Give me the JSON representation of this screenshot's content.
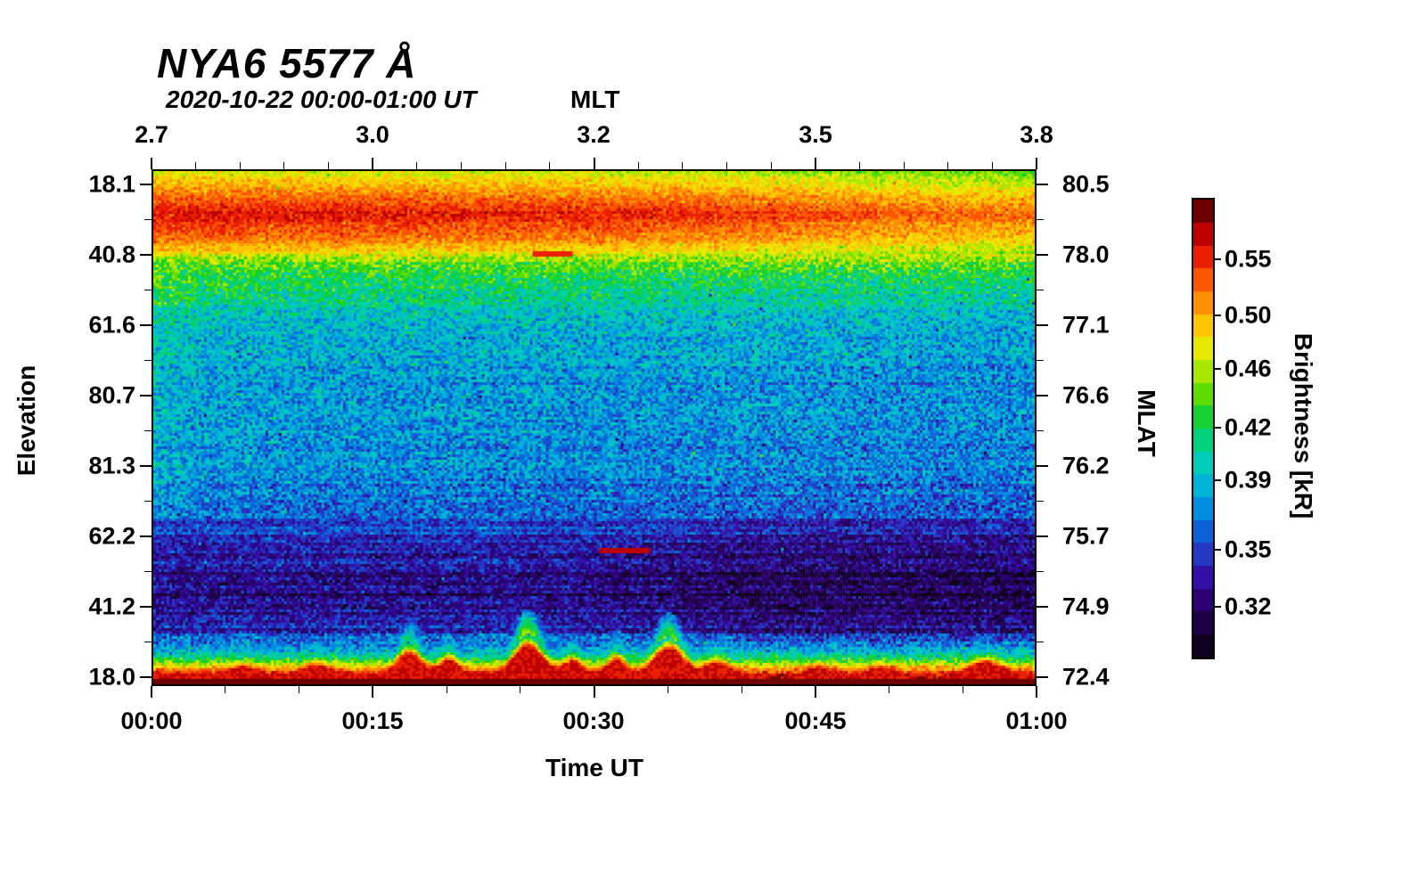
{
  "title": "NYA6 5577 Å",
  "subtitle": "2020-10-22 00:00-01:00 UT",
  "axes": {
    "top": {
      "label": "MLT",
      "ticks": [
        "2.7",
        "3.0",
        "3.2",
        "3.5",
        "3.8"
      ]
    },
    "bottom": {
      "label": "Time UT",
      "ticks": [
        "00:00",
        "00:15",
        "00:30",
        "00:45",
        "01:00"
      ]
    },
    "left": {
      "label": "Elevation",
      "ticks": [
        "18.1",
        "40.8",
        "61.6",
        "80.7",
        "81.3",
        "62.2",
        "41.2",
        "18.0"
      ]
    },
    "right": {
      "label": "MLAT",
      "ticks": [
        "80.5",
        "78.0",
        "77.1",
        "76.6",
        "76.2",
        "75.7",
        "74.9",
        "72.4"
      ]
    }
  },
  "colorbar": {
    "label": "Brightness [kR]",
    "ticks": [
      "0.55",
      "0.50",
      "0.46",
      "0.42",
      "0.39",
      "0.35",
      "0.32"
    ]
  },
  "chart_data": {
    "type": "heatmap",
    "title": "NYA6 5577 Å",
    "subtitle": "2020-10-22 00:00-01:00 UT",
    "x": {
      "label": "Time UT",
      "ticks": [
        "00:00",
        "00:15",
        "00:30",
        "00:45",
        "01:00"
      ]
    },
    "x_top": {
      "label": "MLT",
      "ticks": [
        2.7,
        3.0,
        3.2,
        3.5,
        3.8
      ]
    },
    "y_left": {
      "label": "Elevation",
      "ticks": [
        18.1,
        40.8,
        61.6,
        80.7,
        81.3,
        62.2,
        41.2,
        18.0
      ]
    },
    "y_right": {
      "label": "MLAT",
      "ticks": [
        80.5,
        78.0,
        77.1,
        76.6,
        76.2,
        75.7,
        74.9,
        72.4
      ]
    },
    "value": {
      "label": "Brightness [kR]",
      "ticks": [
        0.55,
        0.5,
        0.46,
        0.42,
        0.39,
        0.35,
        0.32
      ],
      "vmin": 0.295,
      "vmax": 0.605,
      "scale": "log"
    },
    "colormap": [
      [
        0.0,
        "#2e0000"
      ],
      [
        0.03,
        "#7a0000"
      ],
      [
        0.08,
        "#c40000"
      ],
      [
        0.13,
        "#ee2200"
      ],
      [
        0.19,
        "#ff6600"
      ],
      [
        0.25,
        "#ffaa00"
      ],
      [
        0.3,
        "#ffe000"
      ],
      [
        0.34,
        "#d8ee00"
      ],
      [
        0.39,
        "#96e400"
      ],
      [
        0.44,
        "#44d800"
      ],
      [
        0.49,
        "#00cc44"
      ],
      [
        0.54,
        "#00d494"
      ],
      [
        0.59,
        "#00ccc8"
      ],
      [
        0.64,
        "#00aadd"
      ],
      [
        0.7,
        "#0077e0"
      ],
      [
        0.76,
        "#2244cc"
      ],
      [
        0.82,
        "#3311aa"
      ],
      [
        0.88,
        "#2b0070"
      ],
      [
        0.94,
        "#1a0038"
      ],
      [
        1.0,
        "#060008"
      ]
    ],
    "elevation_profile": {
      "description": "Mean brightness (kR) versus vertical position t in the scan (t=0 top edge at elevation 18.1, t=1 bottom edge at elevation 18.0)",
      "t": [
        0.0,
        0.04,
        0.08,
        0.12,
        0.15,
        0.18,
        0.22,
        0.27,
        0.32,
        0.4,
        0.5,
        0.58,
        0.65,
        0.7,
        0.74,
        0.78,
        0.82,
        0.86,
        0.9,
        0.93,
        0.955,
        0.97,
        0.985,
        1.0
      ],
      "kR": [
        0.465,
        0.505,
        0.545,
        0.52,
        0.485,
        0.445,
        0.415,
        0.395,
        0.382,
        0.374,
        0.371,
        0.368,
        0.36,
        0.35,
        0.336,
        0.328,
        0.325,
        0.33,
        0.345,
        0.372,
        0.43,
        0.5,
        0.565,
        0.59
      ]
    },
    "features": [
      {
        "name": "bright-band-north-horizon",
        "t_range": [
          0.03,
          0.14
        ],
        "mean_kR": 0.55,
        "note": "intense red/orange auroral band near the 18.1 elevation edge, strongest early (left), fading toward yellow-green after 00:45"
      },
      {
        "name": "diffuse-blue-region",
        "t_range": [
          0.22,
          0.68
        ],
        "mean_kR": 0.37,
        "note": "speckled cyan/blue background across the whole hour, slightly greener near 00:00"
      },
      {
        "name": "dark-lane",
        "t_range": [
          0.7,
          0.9
        ],
        "mean_kR": 0.326,
        "note": "dark violet/near-black lane, darkest between 00:40 and 01:00"
      },
      {
        "name": "saturated-south-horizon",
        "t_range": [
          0.975,
          1.0
        ],
        "mean_kR": 0.58,
        "note": "solid red strip at the 18.0 elevation edge with wavy peaks near 00:17, 00:25 and 00:35"
      },
      {
        "name": "red-streak-1",
        "t": 0.158,
        "u": [
          0.43,
          0.475
        ],
        "kR": 0.56
      },
      {
        "name": "red-streak-2",
        "t": 0.742,
        "u": [
          0.505,
          0.565
        ],
        "kR": 0.57
      }
    ],
    "render": {
      "seed": 1337,
      "grid": {
        "cols": 330,
        "rows": 192
      },
      "noise_kR": 0.036,
      "bumps": [
        [
          0.1,
          0.02,
          0.25
        ],
        [
          0.185,
          0.02,
          0.3
        ],
        [
          0.29,
          0.018,
          0.75
        ],
        [
          0.335,
          0.015,
          0.5
        ],
        [
          0.425,
          0.022,
          1.05
        ],
        [
          0.475,
          0.015,
          0.45
        ],
        [
          0.525,
          0.014,
          0.5
        ],
        [
          0.585,
          0.022,
          0.95
        ],
        [
          0.64,
          0.018,
          0.4
        ],
        [
          0.72,
          0.03,
          -0.25
        ],
        [
          0.75,
          0.025,
          0.3
        ],
        [
          0.83,
          0.02,
          0.25
        ],
        [
          0.88,
          0.03,
          -0.2
        ],
        [
          0.945,
          0.025,
          0.4
        ]
      ]
    }
  }
}
